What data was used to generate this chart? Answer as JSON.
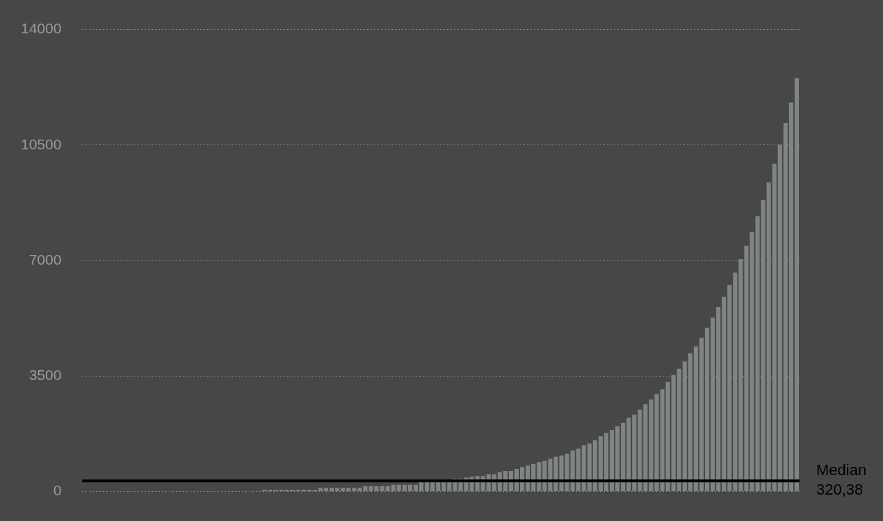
{
  "chart_data": {
    "type": "bar",
    "categories": [
      null,
      null,
      null,
      null,
      null,
      null,
      null,
      null,
      null,
      null,
      null,
      null,
      null,
      null,
      null,
      null,
      null,
      null,
      null,
      null,
      null,
      null,
      null,
      null,
      null,
      null,
      null,
      null,
      null,
      null,
      null,
      null,
      null,
      null,
      null,
      null,
      null,
      null,
      null,
      null,
      null,
      null,
      null,
      null,
      null,
      null,
      null,
      null,
      null,
      null,
      null,
      null,
      null,
      null,
      null,
      null,
      null,
      null,
      null,
      null,
      null,
      null,
      null,
      null,
      null,
      null,
      null,
      null,
      null,
      null,
      null,
      null,
      null,
      null,
      null,
      null,
      null,
      null,
      null,
      null,
      null,
      null,
      null,
      null,
      null,
      null,
      null,
      null,
      null,
      null,
      null,
      null,
      null,
      null,
      null,
      null,
      null,
      null,
      null,
      null,
      null,
      null,
      null,
      null,
      null,
      null,
      null,
      null,
      null,
      null,
      null,
      null,
      null,
      null,
      null,
      null,
      null,
      null,
      null,
      null,
      null,
      null,
      null,
      null,
      null,
      null,
      null,
      null
    ],
    "values": [
      0,
      0,
      0,
      0,
      0,
      0,
      0,
      0,
      0,
      0,
      0,
      0,
      0,
      0,
      0,
      0,
      0,
      0,
      0,
      0,
      0,
      0,
      0,
      0,
      0,
      0,
      0,
      0,
      0,
      0,
      0,
      0,
      50,
      50,
      50,
      50,
      50,
      50,
      50,
      50,
      50,
      50,
      110,
      110,
      110,
      110,
      110,
      110,
      110,
      110,
      155,
      155,
      155,
      155,
      155,
      205,
      205,
      205,
      205,
      205,
      310,
      310,
      310,
      310,
      310,
      310,
      380,
      380,
      420,
      440,
      465,
      465,
      520,
      520,
      580,
      620,
      620,
      680,
      740,
      780,
      830,
      890,
      930,
      990,
      1050,
      1090,
      1140,
      1240,
      1300,
      1400,
      1450,
      1550,
      1670,
      1770,
      1860,
      1980,
      2080,
      2230,
      2330,
      2480,
      2640,
      2790,
      2950,
      3100,
      3320,
      3530,
      3720,
      3940,
      4190,
      4400,
      4650,
      4960,
      5270,
      5590,
      5900,
      6260,
      6630,
      7040,
      7450,
      7870,
      8340,
      8840,
      9370,
      9930,
      10510,
      11170,
      11790,
      12530
    ],
    "color": "#7f8583",
    "ylim": [
      0,
      14000
    ],
    "yticks": [
      0,
      3500,
      7000,
      10500,
      14000
    ],
    "grid": "y",
    "ref_lines": [
      {
        "axis": "y",
        "value": 320.38,
        "label": "Median 320,38",
        "color": "#000000"
      }
    ]
  }
}
